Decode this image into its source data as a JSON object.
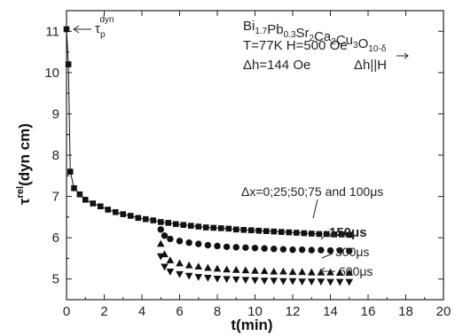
{
  "chart_data": {
    "type": "scatter",
    "xlabel": "t(min)",
    "ylabel_main": "τ",
    "ylabel_sup": "rel",
    "ylabel_rest": "(dyn cm)",
    "xlim": [
      0,
      20
    ],
    "ylim": [
      4.5,
      11.5
    ],
    "xticks": [
      "0",
      "2",
      "4",
      "6",
      "8",
      "10",
      "12",
      "14",
      "16",
      "18",
      "20"
    ],
    "yticks": [
      "5",
      "6",
      "7",
      "8",
      "9",
      "10",
      "11"
    ],
    "grid": false,
    "info": {
      "formula": [
        {
          "t": "Bi",
          "s": "n"
        },
        {
          "t": "1.7",
          "s": "sub"
        },
        {
          "t": "Pb",
          "s": "n"
        },
        {
          "t": "0.3",
          "s": "sub"
        },
        {
          "t": "Sr",
          "s": "n"
        },
        {
          "t": "2",
          "s": "sub"
        },
        {
          "t": "Ca",
          "s": "n"
        },
        {
          "t": "2",
          "s": "sub"
        },
        {
          "t": "Cu",
          "s": "n"
        },
        {
          "t": "3",
          "s": "sub"
        },
        {
          "t": "O",
          "s": "n"
        },
        {
          "t": "10-δ",
          "s": "sub"
        }
      ],
      "conditions": "T=77K  H=500 Oe",
      "dh": "Δh=144 Oe",
      "dh_parallel": "Δh||H"
    },
    "tau_label": "τ",
    "tau_sub": "p",
    "tau_sup": "dyn",
    "annotations": {
      "series_all": "Δx=0;25;50;75 and 100μs",
      "s150": "150μs",
      "s300": "300μs",
      "s600": "600μs"
    },
    "series": [
      {
        "marker": "square",
        "x": [
          0.0,
          0.1,
          0.2,
          0.4,
          0.7,
          1.0,
          1.4,
          1.8,
          2.2,
          2.6,
          3.0,
          3.4,
          3.8,
          4.2,
          4.6,
          5.0,
          5.4,
          5.8,
          6.2,
          6.6,
          7.0,
          7.4,
          7.8,
          8.2,
          8.6,
          9.0,
          9.4,
          9.8,
          10.2,
          10.6,
          11.0,
          11.4,
          11.8,
          12.2,
          12.6,
          13.0,
          13.4,
          13.8,
          14.2,
          14.6,
          15.0
        ],
        "y": [
          11.05,
          10.2,
          7.6,
          7.2,
          7.05,
          6.92,
          6.83,
          6.76,
          6.68,
          6.62,
          6.57,
          6.53,
          6.48,
          6.45,
          6.42,
          6.38,
          6.36,
          6.33,
          6.31,
          6.29,
          6.27,
          6.25,
          6.24,
          6.23,
          6.22,
          6.2,
          6.19,
          6.18,
          6.17,
          6.16,
          6.15,
          6.14,
          6.13,
          6.12,
          6.11,
          6.1,
          6.09,
          6.09,
          6.08,
          6.08,
          6.07
        ]
      },
      {
        "marker": "circle",
        "x": [
          5.0,
          5.2,
          5.5,
          6.0,
          6.5,
          7.0,
          7.5,
          8.0,
          8.5,
          9.0,
          9.5,
          10.0,
          10.5,
          11.0,
          11.5,
          12.0,
          12.5,
          13.0,
          13.5,
          14.0,
          14.5,
          15.0
        ],
        "y": [
          6.2,
          6.05,
          5.97,
          5.92,
          5.88,
          5.85,
          5.82,
          5.8,
          5.78,
          5.77,
          5.76,
          5.75,
          5.74,
          5.73,
          5.72,
          5.71,
          5.71,
          5.7,
          5.7,
          5.69,
          5.69,
          5.68
        ]
      },
      {
        "marker": "triangle-up",
        "x": [
          5.0,
          5.2,
          5.5,
          6.0,
          6.5,
          7.0,
          7.5,
          8.0,
          8.5,
          9.0,
          9.5,
          10.0,
          10.5,
          11.0,
          11.5,
          12.0,
          12.5,
          13.0,
          13.5,
          14.0,
          14.5,
          15.0
        ],
        "y": [
          5.85,
          5.6,
          5.45,
          5.38,
          5.33,
          5.3,
          5.27,
          5.25,
          5.23,
          5.22,
          5.21,
          5.2,
          5.19,
          5.18,
          5.18,
          5.17,
          5.17,
          5.16,
          5.16,
          5.16,
          5.15,
          5.15
        ]
      },
      {
        "marker": "triangle-down",
        "x": [
          5.0,
          5.2,
          5.5,
          6.0,
          6.5,
          7.0,
          7.5,
          8.0,
          8.5,
          9.0,
          9.5,
          10.0,
          10.5,
          11.0,
          11.5,
          12.0,
          12.5,
          13.0,
          13.5,
          14.0,
          14.5,
          15.0
        ],
        "y": [
          5.55,
          5.3,
          5.18,
          5.12,
          5.08,
          5.05,
          5.03,
          5.01,
          5.0,
          4.99,
          4.98,
          4.97,
          4.96,
          4.96,
          4.95,
          4.95,
          4.94,
          4.94,
          4.94,
          4.93,
          4.93,
          4.93
        ]
      }
    ]
  }
}
